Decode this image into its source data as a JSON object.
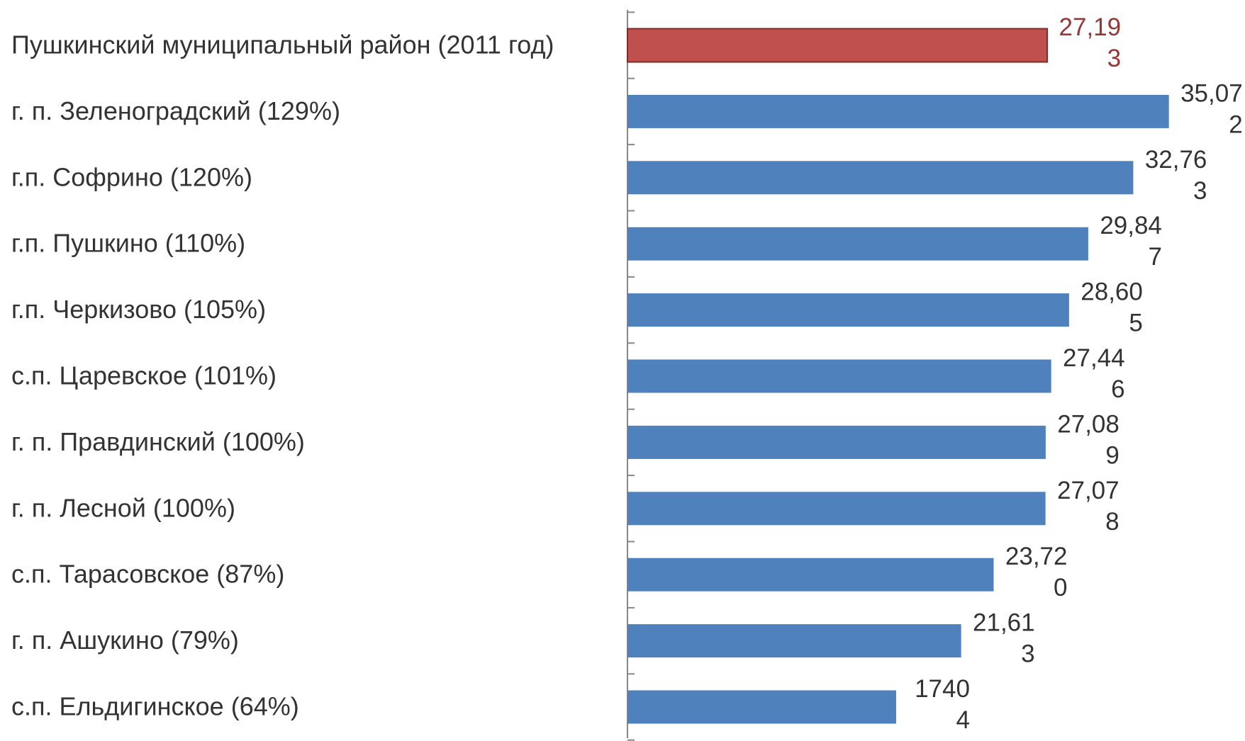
{
  "chart_data": {
    "type": "hbar",
    "categories": [
      "Пушкинский муниципальный район (2011 год)",
      "г. п. Зеленоградский (129%)",
      "г.п. Софрино (120%)",
      "г.п. Пушкино (110%)",
      "г.п. Черкизово (105%)",
      "с.п. Царевское (101%)",
      "г. п. Правдинский (100%)",
      "г. п. Лесной (100%)",
      "с.п. Тарасовское (87%)",
      "г. п. Ашукино (79%)",
      "с.п. Ельдигинское (64%)"
    ],
    "values": [
      27193,
      35072,
      32763,
      29847,
      28605,
      27446,
      27089,
      27078,
      23720,
      21613,
      17404
    ],
    "value_labels": [
      "27,193",
      "35,072",
      "32,763",
      "29,847",
      "28,605",
      "27,446",
      "27,089",
      "27,078",
      "23,720",
      "21,613",
      "17404"
    ],
    "colors": [
      "#c0504d",
      "#4f81bd",
      "#4f81bd",
      "#4f81bd",
      "#4f81bd",
      "#4f81bd",
      "#4f81bd",
      "#4f81bd",
      "#4f81bd",
      "#4f81bd",
      "#4f81bd"
    ],
    "label_colors": [
      "#953735",
      "#333333",
      "#333333",
      "#333333",
      "#333333",
      "#333333",
      "#333333",
      "#333333",
      "#333333",
      "#333333",
      "#333333"
    ],
    "xlim": [
      0,
      40000
    ]
  }
}
